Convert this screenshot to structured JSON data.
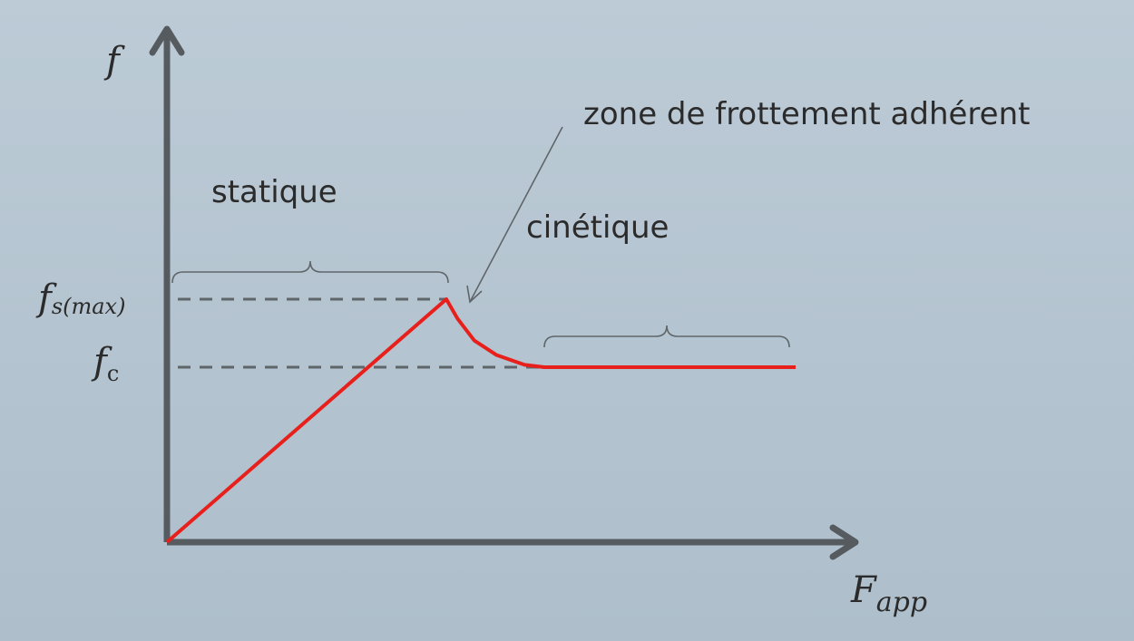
{
  "chart_data": {
    "type": "line",
    "axes": {
      "y_label": "f",
      "x_label_main": "F",
      "x_label_sub": "app"
    },
    "levels": {
      "fs_max": {
        "main": "f",
        "sub": "s(max)",
        "value": 1.0
      },
      "fc": {
        "main": "f",
        "sub": "c",
        "value": 0.72
      }
    },
    "x_range": [
      0,
      2.5
    ],
    "y_range": [
      0,
      1.0
    ],
    "series": [
      {
        "points": [
          [
            0,
            0
          ],
          [
            1.0,
            1.0
          ],
          [
            1.04,
            0.92
          ],
          [
            1.1,
            0.83
          ],
          [
            1.18,
            0.77
          ],
          [
            1.28,
            0.73
          ],
          [
            1.35,
            0.72
          ],
          [
            2.25,
            0.72
          ]
        ]
      }
    ],
    "annotations": {
      "static": "statique",
      "kinetic": "cinétique",
      "zone": "zone de frottement adhérent"
    },
    "colors": {
      "curve": "#e8201c",
      "axis": "#555b5f",
      "dashes": "#5f666a",
      "brace": "#5f666a",
      "text": "#2b2b2b"
    }
  }
}
